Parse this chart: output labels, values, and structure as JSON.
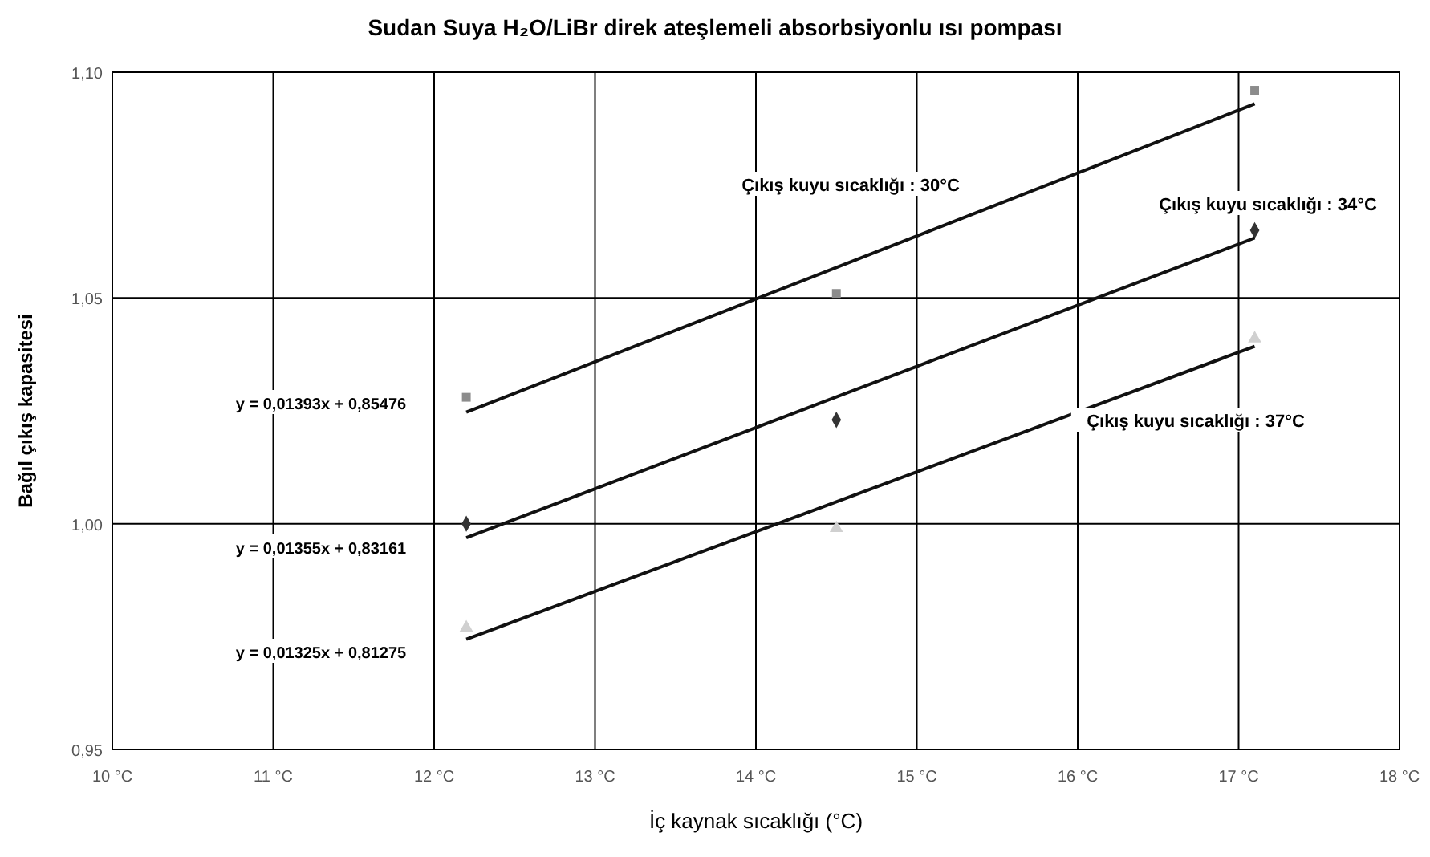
{
  "chart_data": {
    "type": "scatter",
    "title": "Sudan Suya H₂O/LiBr direk ateşlemeli absorbsiyonlu ısı pompası",
    "xlabel": "İç kaynak sıcaklığı (°C)",
    "ylabel": "Bağıl çıkış kapasitesi",
    "xlim": [
      10,
      18
    ],
    "ylim": [
      0.95,
      1.1
    ],
    "xticks": [
      {
        "value": 10,
        "label": "10 °C"
      },
      {
        "value": 11,
        "label": "11 °C"
      },
      {
        "value": 12,
        "label": "12 °C"
      },
      {
        "value": 13,
        "label": "13 °C"
      },
      {
        "value": 14,
        "label": "14 °C"
      },
      {
        "value": 15,
        "label": "15 °C"
      },
      {
        "value": 16,
        "label": "16 °C"
      },
      {
        "value": 17,
        "label": "17 °C"
      },
      {
        "value": 18,
        "label": "18 °C"
      }
    ],
    "yticks": [
      {
        "value": 0.95,
        "label": "0,95"
      },
      {
        "value": 1.0,
        "label": "1,00"
      },
      {
        "value": 1.05,
        "label": "1,05"
      },
      {
        "value": 1.1,
        "label": "1,10"
      }
    ],
    "grid": true,
    "legend": false,
    "series": [
      {
        "marker": "square",
        "color": "#8c8c8c",
        "x": [
          12.2,
          14.5,
          17.1
        ],
        "values": [
          1.028,
          1.051,
          1.096
        ]
      },
      {
        "marker": "diamond",
        "color": "#333333",
        "x": [
          12.2,
          14.5,
          17.1
        ],
        "values": [
          1.0,
          1.023,
          1.065
        ]
      },
      {
        "marker": "triangle",
        "color": "#d0d0d0",
        "x": [
          12.2,
          14.5,
          17.1
        ],
        "values": [
          0.977,
          0.999,
          1.041
        ]
      },
      {
        "type": "line",
        "name": "Çıkış kuyu sıcaklığı : 30°C",
        "line_style": "solid",
        "color": "#111111",
        "x": [
          12.2,
          17.1
        ],
        "values": [
          1.0247,
          1.093
        ]
      },
      {
        "type": "line",
        "name": "Çıkış kuyu sıcaklığı : 34°C",
        "line_style": "solid",
        "color": "#111111",
        "x": [
          12.2,
          17.1
        ],
        "values": [
          0.9969,
          1.0633
        ]
      },
      {
        "type": "line",
        "name": "Çıkış kuyu sıcaklığı : 37°C",
        "line_style": "solid",
        "color": "#111111",
        "x": [
          12.2,
          17.1
        ],
        "values": [
          0.9744,
          1.0393
        ]
      }
    ],
    "annotations": [
      "y = 0,01393x + 0,85476",
      "y = 0,01355x + 0,83161",
      "y = 0,01325x + 0,81275"
    ]
  }
}
